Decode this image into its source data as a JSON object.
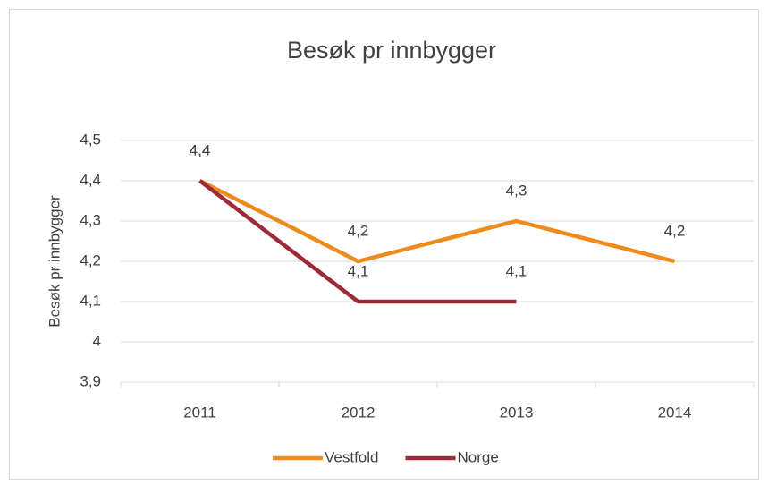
{
  "chart_data": {
    "type": "line",
    "title": "Besøk pr innbygger",
    "y_label": "Besøk pr innbygger",
    "categories": [
      "2011",
      "2012",
      "2013",
      "2014"
    ],
    "series": [
      {
        "name": "Vestfold",
        "color": "#ef8a1d",
        "values": [
          4.4,
          4.2,
          4.3,
          4.2
        ],
        "value_labels": [
          "4,4",
          "4,2",
          "4,3",
          "4,2"
        ]
      },
      {
        "name": "Norge",
        "color": "#9d2a38",
        "values": [
          4.4,
          4.1,
          4.1,
          null
        ],
        "value_labels": [
          "4,4",
          "4,1",
          "4,1",
          null
        ]
      }
    ],
    "ylim": [
      3.9,
      4.5
    ],
    "yticks": [
      {
        "value": 3.9,
        "label": "3,9"
      },
      4,
      {
        "value": 4.1,
        "label": "4,1"
      },
      {
        "value": 4.2,
        "label": "4,2"
      },
      {
        "value": 4.3,
        "label": "4,3"
      },
      {
        "value": 4.4,
        "label": "4,4"
      },
      {
        "value": 4.5,
        "label": "4,5"
      }
    ],
    "grid": true,
    "legend": "bottom"
  }
}
